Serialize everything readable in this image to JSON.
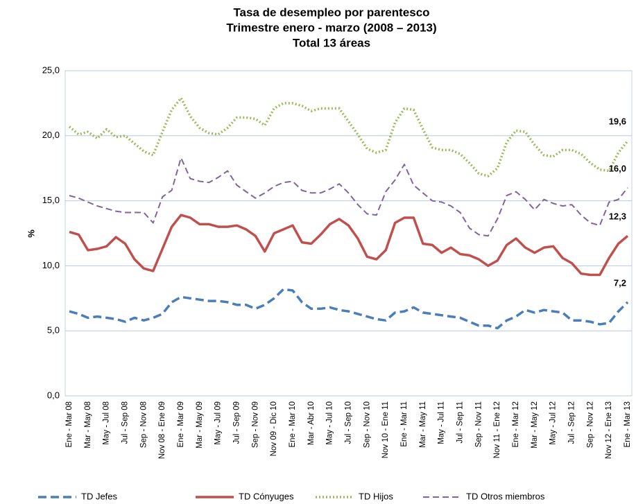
{
  "chart_data": {
    "type": "line",
    "title": [
      "Tasa de desempleo por parentesco",
      "Trimestre enero - marzo (2008 – 2013)",
      "Total 13 áreas"
    ],
    "y_label": "%",
    "categories": [
      "Ene - Mar 08",
      null,
      "Mar - May 08",
      null,
      "May - Jul 08",
      null,
      "Jul - Sep 08",
      null,
      "Sep - Nov 08",
      null,
      "Nov 08 - Ene 09",
      null,
      "Ene - Mar 09",
      null,
      "Mar - May 09",
      null,
      "May - Jul 09",
      null,
      "Jul - Sep 09",
      null,
      "Sep - Nov 09",
      null,
      "Nov 09 - Dic 10",
      null,
      "Ene - Mar 10",
      null,
      "Mar - Abr 10",
      null,
      "May - Jul 10",
      null,
      "Jul - Sep 10",
      null,
      "Sep - Nov 10",
      null,
      "Nov 10 - Ene 11",
      null,
      "Ene - Mar 11",
      null,
      "Mar - May 11",
      null,
      "May - Jul 11",
      null,
      "Jul - Sep 11",
      null,
      "Sep - Nov 11",
      null,
      "Nov 11 - Ene 12",
      null,
      "Ene - Mar 12",
      null,
      "Mar - May 12",
      null,
      "May - Jul 12",
      null,
      "Jul - Sep 12",
      null,
      "Sep - Nov 12",
      null,
      "Nov 12 - Ene 13",
      null,
      "Ene - Mar 13"
    ],
    "series": [
      {
        "name": "TD Jefes",
        "color": "#4a7ebb",
        "dash": "12 6",
        "width": 3.5,
        "values": [
          6.5,
          6.3,
          6.0,
          6.1,
          6.0,
          5.9,
          5.7,
          6.0,
          5.8,
          6.0,
          6.3,
          7.2,
          7.6,
          7.5,
          7.4,
          7.3,
          7.3,
          7.2,
          7.0,
          7.0,
          6.7,
          7.0,
          7.5,
          8.2,
          8.1,
          7.2,
          6.7,
          6.7,
          6.8,
          6.6,
          6.5,
          6.3,
          6.1,
          5.9,
          5.8,
          6.4,
          6.5,
          6.8,
          6.4,
          6.3,
          6.2,
          6.1,
          6.0,
          5.7,
          5.4,
          5.4,
          5.2,
          5.8,
          6.1,
          6.6,
          6.4,
          6.6,
          6.5,
          6.4,
          5.8,
          5.8,
          5.7,
          5.5,
          5.6,
          6.5,
          7.2
        ],
        "value_labels": [
          null,
          null,
          null,
          null,
          null,
          null,
          null,
          null,
          null,
          null,
          null,
          null,
          null,
          null,
          null,
          null,
          null,
          null,
          null,
          null,
          null,
          null,
          null,
          null,
          null,
          null,
          null,
          null,
          null,
          null,
          null,
          null,
          null,
          null,
          null,
          null,
          null,
          null,
          null,
          null,
          null,
          null,
          null,
          null,
          null,
          null,
          null,
          null,
          null,
          null,
          null,
          null,
          null,
          null,
          null,
          null,
          null,
          null,
          null,
          null,
          "7,2"
        ]
      },
      {
        "name": "TD Cónyuges",
        "color": "#c0504d",
        "dash": "none",
        "width": 3.5,
        "values": [
          12.6,
          12.4,
          11.2,
          11.3,
          11.5,
          12.2,
          11.7,
          10.5,
          9.8,
          9.6,
          11.3,
          13.0,
          13.9,
          13.7,
          13.2,
          13.2,
          13.0,
          13.0,
          13.1,
          12.8,
          12.3,
          11.1,
          12.5,
          12.8,
          13.1,
          11.8,
          11.7,
          12.4,
          13.2,
          13.6,
          13.1,
          12.1,
          10.7,
          10.5,
          11.2,
          13.3,
          13.7,
          13.7,
          11.7,
          11.6,
          11.0,
          11.4,
          10.9,
          10.8,
          10.5,
          10.0,
          10.4,
          11.6,
          12.1,
          11.4,
          11.0,
          11.4,
          11.5,
          10.6,
          10.2,
          9.4,
          9.3,
          9.3,
          10.6,
          11.7,
          12.3
        ],
        "value_labels": [
          null,
          null,
          null,
          null,
          null,
          null,
          null,
          null,
          null,
          null,
          null,
          null,
          null,
          null,
          null,
          null,
          null,
          null,
          null,
          null,
          null,
          null,
          null,
          null,
          null,
          null,
          null,
          null,
          null,
          null,
          null,
          null,
          null,
          null,
          null,
          null,
          null,
          null,
          null,
          null,
          null,
          null,
          null,
          null,
          null,
          null,
          null,
          null,
          null,
          null,
          null,
          null,
          null,
          null,
          null,
          null,
          null,
          null,
          null,
          null,
          "12,3"
        ]
      },
      {
        "name": "TD Hijos",
        "color": "#9bbb59",
        "dash": "2 3",
        "width": 3.5,
        "values": [
          20.7,
          20.1,
          20.3,
          19.8,
          20.5,
          19.9,
          20.0,
          19.4,
          18.8,
          18.5,
          20.3,
          22.0,
          22.9,
          21.5,
          20.6,
          20.2,
          20.1,
          20.6,
          21.4,
          21.4,
          21.3,
          20.8,
          22.1,
          22.5,
          22.5,
          22.3,
          21.9,
          22.1,
          22.1,
          22.1,
          21.1,
          20.1,
          19.0,
          18.7,
          18.9,
          21.0,
          22.1,
          22.0,
          20.5,
          19.1,
          18.9,
          18.9,
          18.6,
          17.9,
          17.1,
          16.9,
          17.5,
          19.5,
          20.4,
          20.3,
          19.3,
          18.5,
          18.4,
          18.9,
          18.9,
          18.6,
          17.9,
          17.4,
          17.3,
          18.7,
          19.6
        ],
        "value_labels": [
          null,
          null,
          null,
          null,
          null,
          null,
          null,
          null,
          null,
          null,
          null,
          null,
          null,
          null,
          null,
          null,
          null,
          null,
          null,
          null,
          null,
          null,
          null,
          null,
          null,
          null,
          null,
          null,
          null,
          null,
          null,
          null,
          null,
          null,
          null,
          null,
          null,
          null,
          null,
          null,
          null,
          null,
          null,
          null,
          null,
          null,
          null,
          null,
          null,
          null,
          null,
          null,
          null,
          null,
          null,
          null,
          null,
          null,
          null,
          null,
          "19,6"
        ]
      },
      {
        "name": "TD Otros miembros",
        "color": "#8064a2",
        "dash": "9 5",
        "width": 2,
        "values": [
          15.4,
          15.2,
          14.9,
          14.6,
          14.4,
          14.2,
          14.1,
          14.1,
          14.1,
          13.3,
          15.3,
          15.8,
          18.3,
          16.7,
          16.5,
          16.4,
          16.8,
          17.3,
          16.2,
          15.7,
          15.2,
          15.6,
          16.1,
          16.4,
          16.5,
          15.8,
          15.6,
          15.6,
          15.9,
          16.3,
          15.6,
          14.7,
          14.0,
          13.9,
          15.7,
          16.6,
          17.8,
          16.2,
          15.6,
          15.0,
          14.9,
          14.6,
          14.1,
          12.9,
          12.4,
          12.3,
          13.6,
          15.4,
          15.7,
          15.1,
          14.3,
          15.1,
          14.8,
          14.6,
          14.7,
          13.9,
          13.3,
          13.1,
          14.9,
          15.1,
          16.0
        ],
        "value_labels": [
          null,
          null,
          null,
          null,
          null,
          null,
          null,
          null,
          null,
          null,
          null,
          null,
          null,
          null,
          null,
          null,
          null,
          null,
          null,
          null,
          null,
          null,
          null,
          null,
          null,
          null,
          null,
          null,
          null,
          null,
          null,
          null,
          null,
          null,
          null,
          null,
          null,
          null,
          null,
          null,
          null,
          null,
          null,
          null,
          null,
          null,
          null,
          null,
          null,
          null,
          null,
          null,
          null,
          null,
          null,
          null,
          null,
          null,
          null,
          null,
          "16,0"
        ]
      }
    ],
    "ylim": [
      0,
      25
    ],
    "yticks": [
      {
        "value": 0,
        "label": "0,0"
      },
      {
        "value": 5,
        "label": "5,0"
      },
      {
        "value": 10,
        "label": "10,0"
      },
      {
        "value": 15,
        "label": "15,0"
      },
      {
        "value": 20,
        "label": "20,0"
      },
      {
        "value": 25,
        "label": "25,0"
      }
    ],
    "grid": true,
    "legend": "bottom"
  }
}
